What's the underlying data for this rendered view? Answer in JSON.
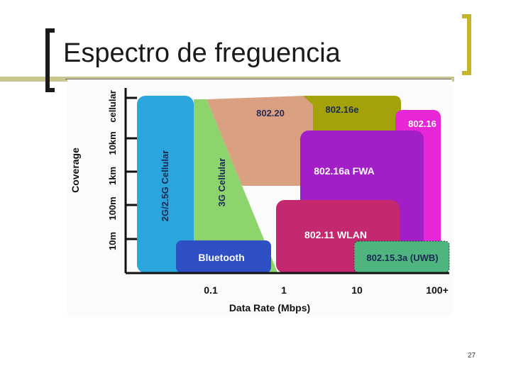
{
  "slide": {
    "title": "Espectro de freguencia",
    "page_number": "27"
  },
  "diagram": {
    "y_axis_title": "Coverage",
    "x_axis_title": "Data Rate (Mbps)",
    "y_ticks": [
      "10m",
      "100m",
      "1km",
      "10km",
      "cellular"
    ],
    "x_ticks": [
      "0.1",
      "1",
      "10",
      "100+"
    ],
    "regions": {
      "cellular": "2G/2.5G Cellular",
      "cellular3g": "3G Cellular",
      "r80220": "802.20",
      "r80216e": "802.16e",
      "r80216": "802.16",
      "r80216a": "802.16a FWA",
      "r80211": "802.11 WLAN",
      "bluetooth": "Bluetooth",
      "uwb": "802.15.3a (UWB)"
    },
    "colors": {
      "cellular": "#2aa6dc",
      "cellular3g": "#8ed46c",
      "r80220": "#d9a181",
      "r80216e": "#a3a20b",
      "r80216": "#e626d7",
      "r80216a": "#a21fc7",
      "r80211": "#c4286e",
      "bluetooth": "#2f4fc4",
      "uwb": "#4fb57e"
    }
  }
}
